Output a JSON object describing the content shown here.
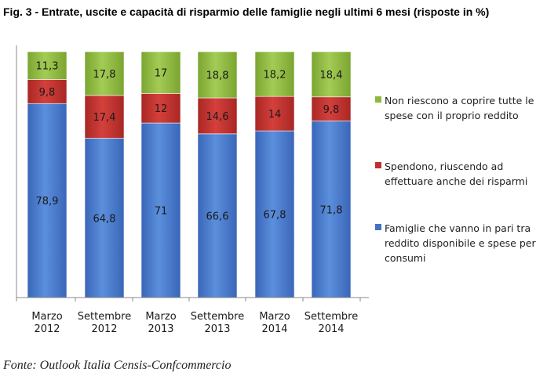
{
  "title": "Fig. 3 - Entrate, uscite e capacità di risparmio delle famiglie negli ultimi 6 mesi (risposte in %)",
  "source": "Fonte: Outlook Italia Censis-Confcommercio",
  "chart_data": {
    "type": "bar",
    "stacked": true,
    "categories": [
      [
        "Marzo",
        "2012"
      ],
      [
        "Settembre",
        "2012"
      ],
      [
        "Marzo",
        "2013"
      ],
      [
        "Settembre",
        "2013"
      ],
      [
        "Marzo",
        "2014"
      ],
      [
        "Settembre",
        "2014"
      ]
    ],
    "series": [
      {
        "name": "Famiglie che vanno in pari tra reddito disponibile e spese per consumi",
        "values": [
          78.9,
          64.8,
          71,
          66.6,
          67.8,
          71.8
        ],
        "labels": [
          "78,9",
          "64,8",
          "71",
          "66,6",
          "67,8",
          "71,8"
        ],
        "color": "#4472C4"
      },
      {
        "name": "Spendono, riuscendo ad effettuare anche dei risparmi",
        "values": [
          9.8,
          17.4,
          12,
          14.6,
          14,
          9.8
        ],
        "labels": [
          "9,8",
          "17,4",
          "12",
          "14,6",
          "14",
          "9,8"
        ],
        "color": "#C0302E"
      },
      {
        "name": "Non riescono a coprire tutte le spese con il proprio reddito",
        "values": [
          11.3,
          17.8,
          17,
          18.8,
          18.2,
          18.4
        ],
        "labels": [
          "11,3",
          "17,8",
          "17",
          "18,8",
          "18,2",
          "18,4"
        ],
        "color": "#8CB83E"
      }
    ],
    "legend_order": [
      2,
      1,
      0
    ],
    "legend_position": "right",
    "grid": false,
    "ylim": [
      0,
      100
    ]
  }
}
